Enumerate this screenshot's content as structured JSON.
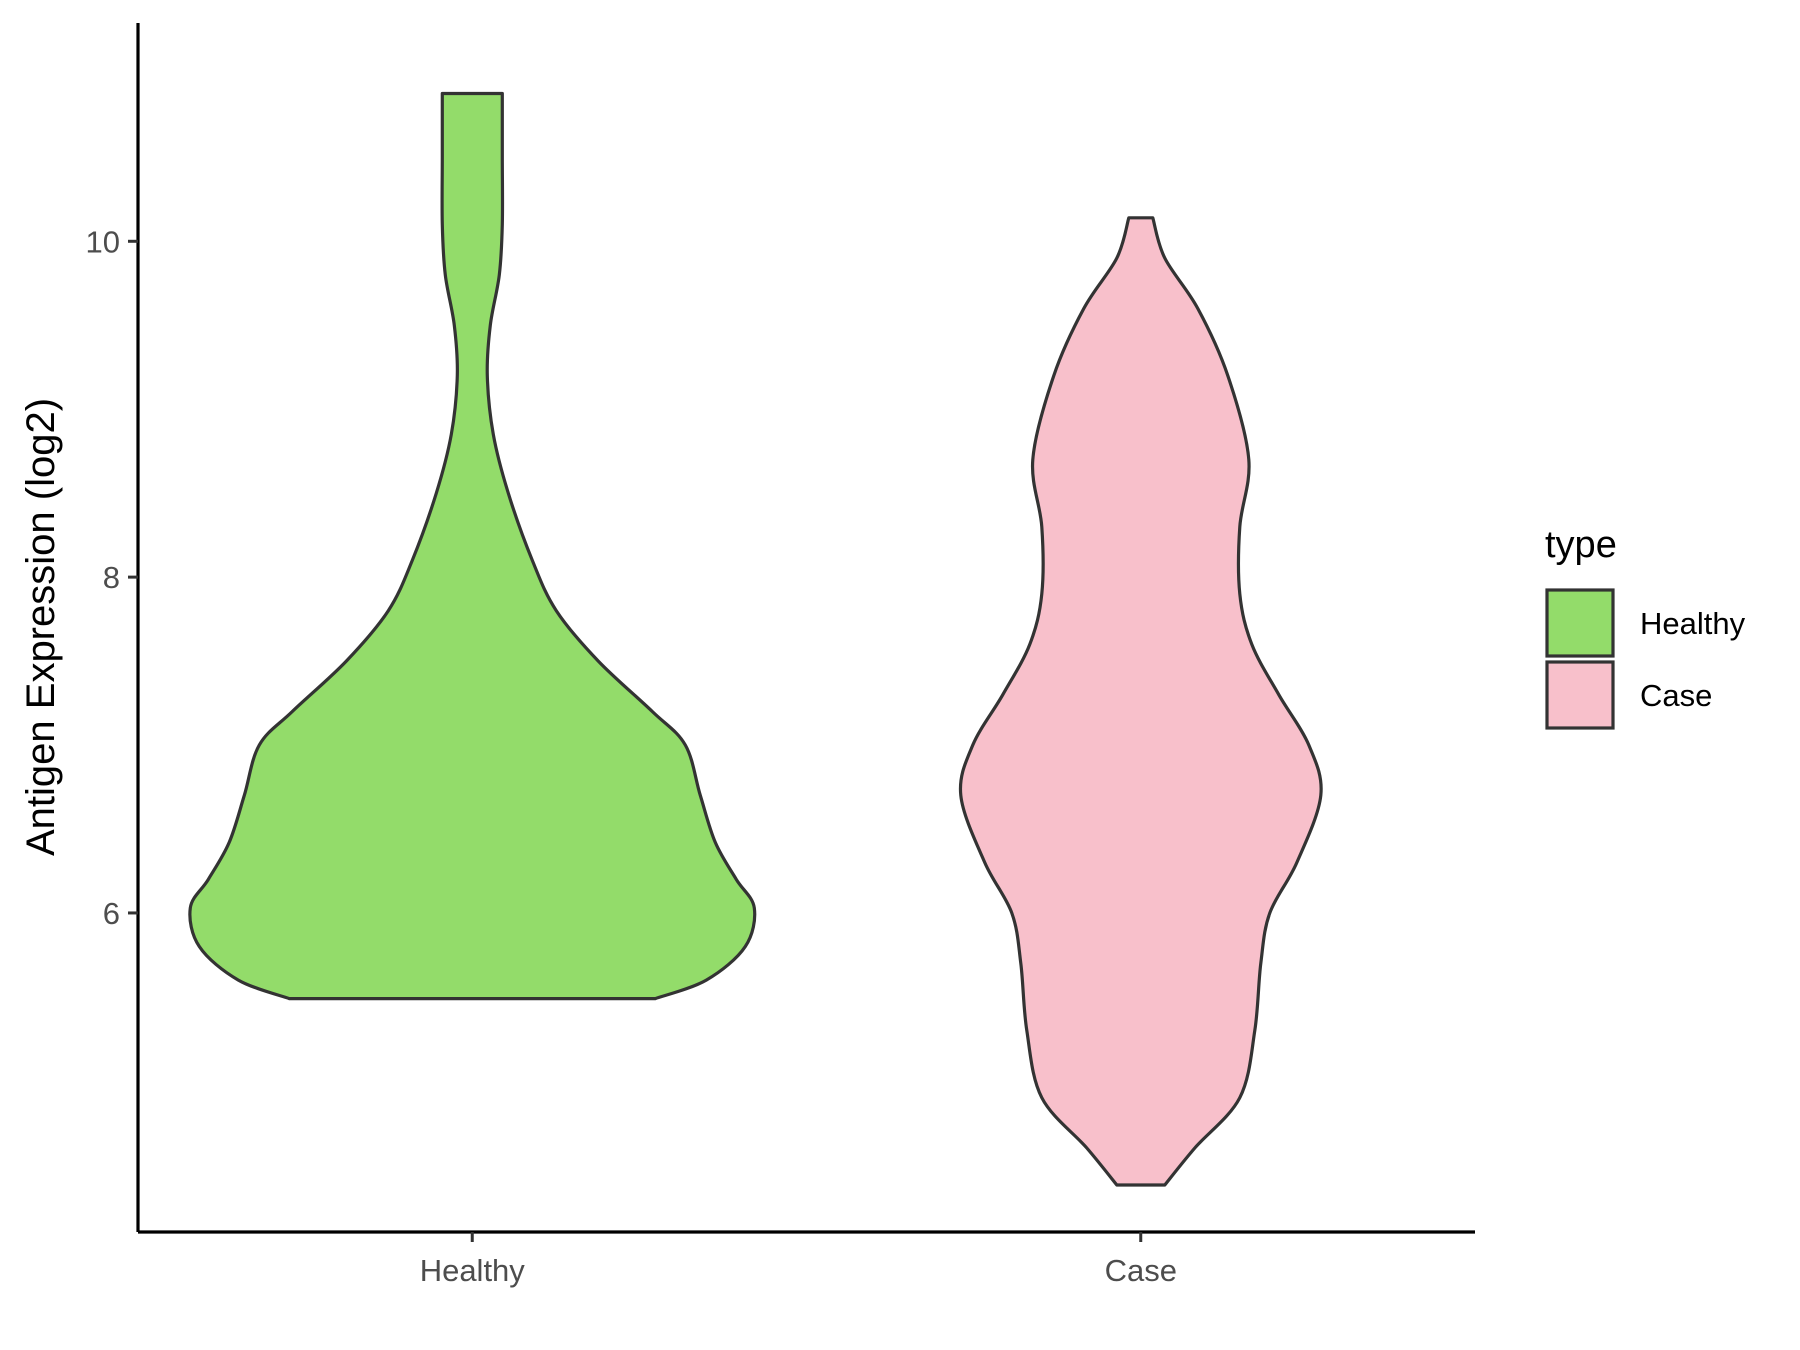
{
  "chart_data": {
    "type": "violin",
    "xlabel": "",
    "ylabel": "Antigen Expression (log2)",
    "categories": [
      "Healthy",
      "Case"
    ],
    "ylim": [
      4.1,
      11.3
    ],
    "yticks": [
      6,
      8,
      10
    ],
    "grid": false,
    "legend": {
      "title": "type",
      "position": "right",
      "entries": [
        {
          "label": "Healthy",
          "color": "#93dc6a"
        },
        {
          "label": "Case",
          "color": "#f8c0cb"
        }
      ]
    },
    "series": [
      {
        "name": "Healthy",
        "color": "#93dc6a",
        "min": 5.49,
        "max": 10.88,
        "profile": [
          [
            5.49,
            0.61
          ],
          [
            5.6,
            0.78
          ],
          [
            5.8,
            0.91
          ],
          [
            6.03,
            0.94
          ],
          [
            6.2,
            0.88
          ],
          [
            6.42,
            0.81
          ],
          [
            6.7,
            0.76
          ],
          [
            7.0,
            0.71
          ],
          [
            7.2,
            0.6
          ],
          [
            7.5,
            0.42
          ],
          [
            7.8,
            0.28
          ],
          [
            8.1,
            0.2
          ],
          [
            8.5,
            0.12
          ],
          [
            8.85,
            0.07
          ],
          [
            9.2,
            0.05
          ],
          [
            9.5,
            0.06
          ],
          [
            9.8,
            0.09
          ],
          [
            10.1,
            0.1
          ],
          [
            10.5,
            0.1
          ],
          [
            10.88,
            0.1
          ]
        ]
      },
      {
        "name": "Case",
        "color": "#f8c0cb",
        "min": 4.38,
        "max": 10.14,
        "profile": [
          [
            4.38,
            0.08
          ],
          [
            4.6,
            0.18
          ],
          [
            4.9,
            0.33
          ],
          [
            5.3,
            0.38
          ],
          [
            5.7,
            0.4
          ],
          [
            6.0,
            0.43
          ],
          [
            6.3,
            0.52
          ],
          [
            6.7,
            0.6
          ],
          [
            7.0,
            0.56
          ],
          [
            7.3,
            0.46
          ],
          [
            7.6,
            0.37
          ],
          [
            7.9,
            0.33
          ],
          [
            8.3,
            0.33
          ],
          [
            8.7,
            0.36
          ],
          [
            9.2,
            0.29
          ],
          [
            9.6,
            0.19
          ],
          [
            9.9,
            0.08
          ],
          [
            10.14,
            0.04
          ]
        ]
      }
    ]
  }
}
